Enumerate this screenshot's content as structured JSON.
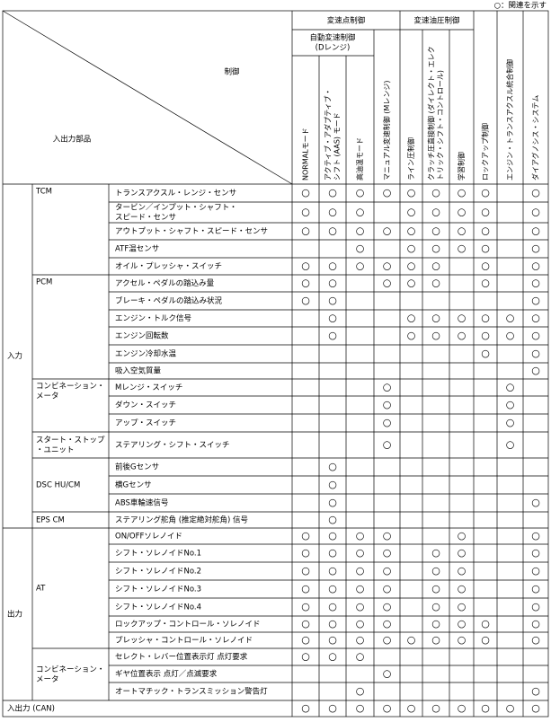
{
  "legend": "○：関連を示す",
  "header": {
    "control": "制御",
    "io": "入出力部品",
    "group_shift_point": "変速点制御",
    "group_auto": [
      "自動変速制御",
      "(Dレンジ)"
    ],
    "group_pressure": "変速油圧制御",
    "columns": [
      [
        "NORMALモード"
      ],
      [
        "アクティブ・アダプティブ・",
        "シフト (AAS) モード"
      ],
      [
        "高油温モード"
      ],
      [
        "マニュアル変速制御 (Mレンジ)"
      ],
      [
        "ライン圧制御"
      ],
      [
        "クラッチ圧直接制御 (ダイレクト・エレク",
        "トリック・シフト・コントロール)"
      ],
      [
        "学習制御"
      ],
      [
        "ロックアップ制御"
      ],
      [
        "エンジン・トランスアクスル統合制御"
      ],
      [
        "ダイアグノシス・システム"
      ]
    ]
  },
  "sections": [
    {
      "label": "入力",
      "groups": [
        {
          "label": [
            "TCM"
          ],
          "rows": [
            {
              "item": [
                "トランスアクスル・レンジ・センサ"
              ],
              "cells": [
                "○",
                "○",
                "○",
                "○",
                "○",
                "○",
                "○",
                "○",
                null,
                "○"
              ]
            },
            {
              "item": [
                "タービン／インプット・シャフト・",
                "スピード・センサ"
              ],
              "cells": [
                "○",
                "○",
                "○",
                null,
                "○",
                "○",
                "○",
                "○",
                null,
                "○"
              ]
            },
            {
              "item": [
                "アウトプット・シャフト・スピード・センサ"
              ],
              "cells": [
                "○",
                "○",
                "○",
                "○",
                "○",
                "○",
                "○",
                "○",
                null,
                "○"
              ]
            },
            {
              "item": [
                "ATF温センサ"
              ],
              "cells": [
                null,
                null,
                "○",
                null,
                "○",
                "○",
                "○",
                "○",
                null,
                "○"
              ]
            },
            {
              "item": [
                "オイル・プレッシャ・スイッチ"
              ],
              "cells": [
                "○",
                "○",
                "○",
                "○",
                "○",
                "○",
                null,
                "○",
                null,
                "○"
              ]
            }
          ]
        },
        {
          "label": [
            "PCM"
          ],
          "rows": [
            {
              "item": [
                "アクセル・ペダルの踏込み量"
              ],
              "cells": [
                "○",
                "○",
                null,
                "○",
                "○",
                "○",
                null,
                "○",
                null,
                "○"
              ]
            },
            {
              "item": [
                "ブレーキ・ペダルの踏込み状況"
              ],
              "cells": [
                "○",
                "○",
                null,
                null,
                null,
                null,
                null,
                null,
                null,
                "○"
              ]
            },
            {
              "item": [
                "エンジン・トルク信号"
              ],
              "cells": [
                null,
                "○",
                null,
                null,
                "○",
                "○",
                "○",
                "○",
                "○",
                "○"
              ]
            },
            {
              "item": [
                "エンジン回転数"
              ],
              "cells": [
                null,
                "○",
                null,
                null,
                "○",
                "○",
                "○",
                "○",
                "○",
                "○"
              ]
            },
            {
              "item": [
                "エンジン冷却水温"
              ],
              "cells": [
                null,
                null,
                null,
                null,
                null,
                null,
                null,
                "○",
                null,
                "○"
              ]
            },
            {
              "item": [
                "吸入空気質量"
              ],
              "cells": [
                null,
                null,
                null,
                null,
                null,
                null,
                null,
                null,
                null,
                "○"
              ]
            }
          ]
        },
        {
          "label": [
            "コンビネーション・",
            "メータ"
          ],
          "rows": [
            {
              "item": [
                "Mレンジ・スイッチ"
              ],
              "cells": [
                null,
                null,
                null,
                "○",
                null,
                null,
                null,
                null,
                "○",
                null
              ]
            },
            {
              "item": [
                "ダウン・スイッチ"
              ],
              "cells": [
                null,
                null,
                null,
                "○",
                null,
                null,
                null,
                null,
                "○",
                null
              ]
            },
            {
              "item": [
                "アップ・スイッチ"
              ],
              "cells": [
                null,
                null,
                null,
                "○",
                null,
                null,
                null,
                null,
                "○",
                null
              ]
            }
          ]
        },
        {
          "label": [
            "スタート・ストップ",
            "・ユニット"
          ],
          "rows": [
            {
              "item": [
                "ステアリング・シフト・スイッチ"
              ],
              "cells": [
                null,
                null,
                null,
                "○",
                null,
                null,
                null,
                null,
                "○",
                null
              ]
            }
          ]
        },
        {
          "label": [
            "DSC HU/CM"
          ],
          "rows": [
            {
              "item": [
                "前後Gセンサ"
              ],
              "cells": [
                null,
                "○",
                null,
                null,
                null,
                null,
                null,
                null,
                null,
                null
              ]
            },
            {
              "item": [
                "横Gセンサ"
              ],
              "cells": [
                null,
                "○",
                null,
                null,
                null,
                null,
                null,
                null,
                null,
                null
              ]
            },
            {
              "item": [
                "ABS車輪速信号"
              ],
              "cells": [
                null,
                "○",
                null,
                null,
                null,
                null,
                null,
                null,
                null,
                "○"
              ]
            }
          ]
        },
        {
          "label": [
            "EPS CM"
          ],
          "rows": [
            {
              "item": [
                "ステアリング舵角 (推定絶対舵角) 信号"
              ],
              "cells": [
                null,
                "○",
                null,
                null,
                null,
                null,
                null,
                null,
                null,
                null
              ]
            }
          ]
        }
      ]
    },
    {
      "label": "出力",
      "groups": [
        {
          "label": [
            "AT"
          ],
          "rows": [
            {
              "item": [
                "ON/OFFソレノイド"
              ],
              "cells": [
                "○",
                "○",
                "○",
                "○",
                null,
                null,
                "○",
                null,
                null,
                "○"
              ]
            },
            {
              "item": [
                "シフト・ソレノイドNo.1"
              ],
              "cells": [
                "○",
                "○",
                "○",
                "○",
                null,
                "○",
                "○",
                null,
                null,
                "○"
              ]
            },
            {
              "item": [
                "シフト・ソレノイドNo.2"
              ],
              "cells": [
                "○",
                "○",
                "○",
                "○",
                null,
                "○",
                "○",
                null,
                null,
                "○"
              ]
            },
            {
              "item": [
                "シフト・ソレノイドNo.3"
              ],
              "cells": [
                "○",
                "○",
                "○",
                "○",
                null,
                "○",
                "○",
                null,
                null,
                "○"
              ]
            },
            {
              "item": [
                "シフト・ソレノイドNo.4"
              ],
              "cells": [
                "○",
                "○",
                "○",
                "○",
                null,
                "○",
                "○",
                null,
                null,
                "○"
              ]
            },
            {
              "item": [
                "ロックアップ・コントロール・ソレノイド"
              ],
              "cells": [
                "○",
                "○",
                "○",
                "○",
                null,
                "○",
                "○",
                "○",
                null,
                "○"
              ]
            },
            {
              "item": [
                "プレッシャ・コントロール・ソレノイド"
              ],
              "cells": [
                "○",
                "○",
                "○",
                "○",
                "○",
                "○",
                "○",
                "○",
                null,
                "○"
              ]
            }
          ]
        },
        {
          "label": [
            "コンビネーション・",
            "メータ"
          ],
          "rows": [
            {
              "item": [
                "セレクト・レバー位置表示灯 点灯要求"
              ],
              "cells": [
                "○",
                "○",
                "○",
                null,
                null,
                null,
                null,
                null,
                null,
                null
              ]
            },
            {
              "item": [
                "ギヤ位置表示 点灯／点滅要求"
              ],
              "cells": [
                null,
                null,
                null,
                "○",
                null,
                null,
                null,
                null,
                null,
                null
              ]
            },
            {
              "item": [
                "オートマチック・トランスミッション警告灯"
              ],
              "cells": [
                null,
                null,
                "○",
                null,
                null,
                null,
                null,
                null,
                null,
                "○"
              ]
            }
          ]
        }
      ]
    }
  ],
  "can_row": {
    "label": "入出力 (CAN)",
    "cells": [
      "○",
      "○",
      "○",
      "○",
      "○",
      "○",
      "○",
      "○",
      "○",
      "○"
    ]
  }
}
